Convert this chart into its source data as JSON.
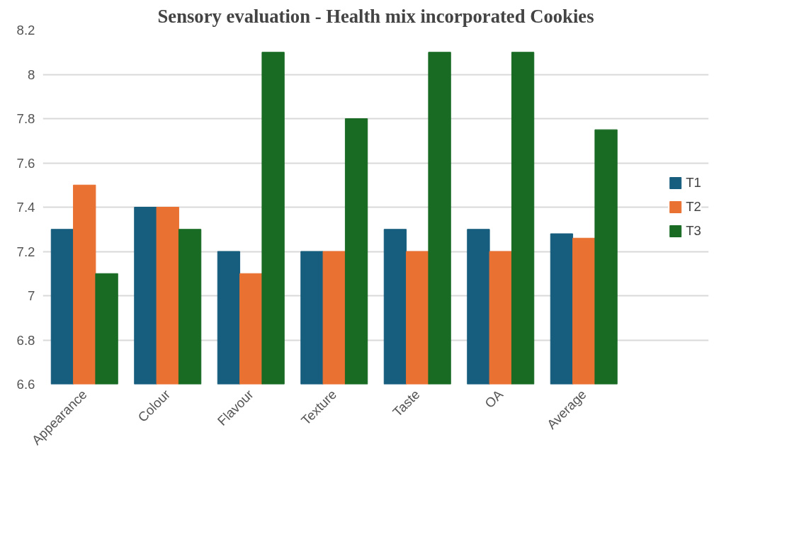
{
  "chart_data": {
    "type": "bar",
    "title": "Sensory evaluation - Health mix incorporated Cookies",
    "categories": [
      "Appearance",
      "Colour",
      "Flavour",
      "Texture",
      "Taste",
      "OA",
      "Average"
    ],
    "series": [
      {
        "name": "T1",
        "color": "#175e7e",
        "values": [
          7.3,
          7.4,
          7.2,
          7.2,
          7.3,
          7.3,
          7.28
        ]
      },
      {
        "name": "T2",
        "color": "#e97132",
        "values": [
          7.5,
          7.4,
          7.1,
          7.2,
          7.2,
          7.2,
          7.26
        ]
      },
      {
        "name": "T3",
        "color": "#196b24",
        "values": [
          7.1,
          7.3,
          8.1,
          7.8,
          8.1,
          8.1,
          7.75
        ]
      }
    ],
    "ylim": [
      6.6,
      8.2
    ],
    "yticks": [
      6.6,
      6.8,
      7,
      7.2,
      7.4,
      7.6,
      7.8,
      8,
      8.2
    ],
    "grid": "y",
    "legend": "right"
  }
}
